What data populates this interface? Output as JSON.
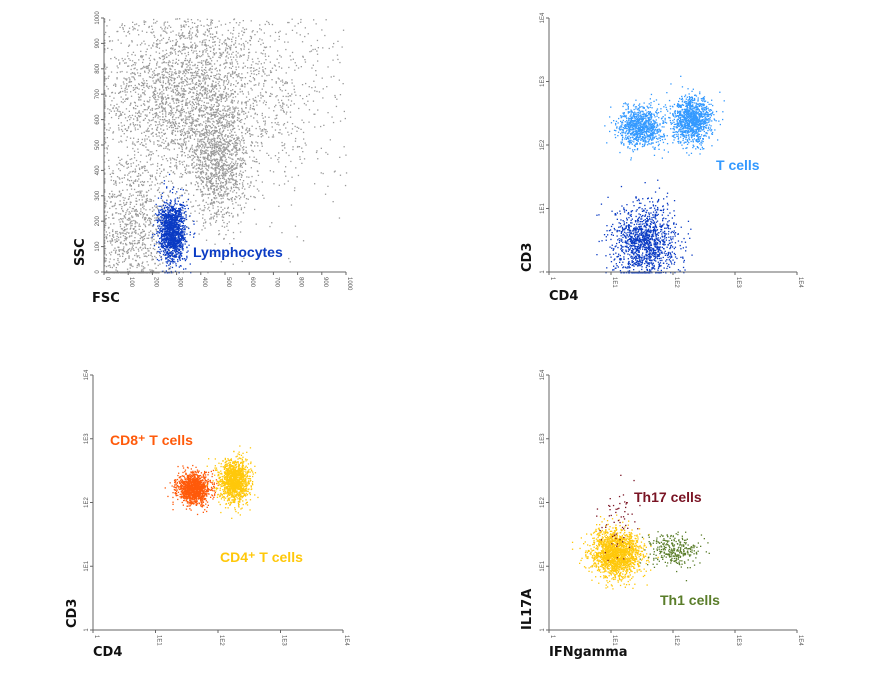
{
  "chart_data": [
    {
      "type": "scatter",
      "xlabel": "FSC",
      "ylabel": "SSC",
      "xscale": "linear",
      "yscale": "linear",
      "xlim": [
        0,
        1000
      ],
      "ylim": [
        0,
        1000
      ],
      "xticks": [
        "0",
        "100",
        "200",
        "300",
        "400",
        "500",
        "600",
        "700",
        "800",
        "900",
        "1000"
      ],
      "yticks": [
        "0",
        "100",
        "200",
        "300",
        "400",
        "500",
        "600",
        "700",
        "800",
        "900",
        "1000"
      ],
      "grid": false,
      "populations": [
        {
          "color": "#9a9a9a",
          "n": 2500,
          "center": [
            330,
            700
          ],
          "spread": [
            170,
            180
          ]
        },
        {
          "color": "#9a9a9a",
          "n": 1000,
          "center": [
            470,
            420
          ],
          "spread": [
            60,
            110
          ]
        },
        {
          "color": "#9a9a9a",
          "n": 900,
          "center": [
            120,
            150
          ],
          "spread": [
            80,
            150
          ]
        },
        {
          "color": "#9a9a9a",
          "n": 900,
          "center": [
            600,
            700
          ],
          "spread": [
            250,
            230
          ]
        },
        {
          "name": "Lymphocytes",
          "color": "#0a3bc4",
          "n": 1400,
          "center": [
            280,
            160
          ],
          "spread": [
            28,
            60
          ]
        }
      ]
    },
    {
      "type": "scatter",
      "xlabel": "CD4",
      "ylabel": "CD3",
      "xscale": "log",
      "yscale": "log",
      "xlim": [
        1,
        10000
      ],
      "ylim": [
        1,
        10000
      ],
      "xticks": [
        "1",
        "1E1",
        "1E2",
        "1E3",
        "1E4"
      ],
      "yticks": [
        "1",
        "1E1",
        "1E2",
        "1E3",
        "1E4"
      ],
      "grid": false,
      "populations": [
        {
          "color": "#3399ff",
          "n": 900,
          "center": [
            30,
            200
          ],
          "spread": [
            0.18,
            0.16
          ]
        },
        {
          "name": "T cells",
          "color": "#3399ff",
          "n": 1100,
          "center": [
            200,
            250
          ],
          "spread": [
            0.16,
            0.18
          ]
        },
        {
          "color": "#0a3bc4",
          "n": 1300,
          "center": [
            35,
            3
          ],
          "spread": [
            0.25,
            0.3
          ]
        }
      ]
    },
    {
      "type": "scatter",
      "xlabel": "CD4",
      "ylabel": "CD3",
      "xscale": "log",
      "yscale": "log",
      "xlim": [
        1,
        10000
      ],
      "ylim": [
        1,
        10000
      ],
      "xticks": [
        "1",
        "1E1",
        "1E2",
        "1E3",
        "1E4"
      ],
      "yticks": [
        "1",
        "1E1",
        "1E2",
        "1E3",
        "1E4"
      ],
      "grid": false,
      "populations": [
        {
          "name": "CD8⁺ T cells",
          "color": "#ff5a0a",
          "n": 1200,
          "center": [
            40,
            170
          ],
          "spread": [
            0.13,
            0.12
          ]
        },
        {
          "name": "CD4⁺ T cells",
          "color": "#ffc80a",
          "n": 1300,
          "center": [
            180,
            220
          ],
          "spread": [
            0.12,
            0.17
          ]
        }
      ]
    },
    {
      "type": "scatter",
      "xlabel": "IFNgamma",
      "ylabel": "IL17A",
      "xscale": "log",
      "yscale": "log",
      "xlim": [
        1,
        10000
      ],
      "ylim": [
        1,
        10000
      ],
      "xticks": [
        "1",
        "1E1",
        "1E2",
        "1E3",
        "1E4"
      ],
      "yticks": [
        "1",
        "1E1",
        "1E2",
        "1E3",
        "1E4"
      ],
      "grid": false,
      "populations": [
        {
          "color": "#ffc80a",
          "n": 1800,
          "center": [
            12,
            16
          ],
          "spread": [
            0.2,
            0.18
          ]
        },
        {
          "name": "Th1 cells",
          "color": "#5a7d2a",
          "n": 300,
          "center": [
            100,
            18
          ],
          "spread": [
            0.2,
            0.13
          ]
        },
        {
          "name": "Th17 cells",
          "color": "#7a1424",
          "n": 60,
          "center": [
            12,
            55
          ],
          "spread": [
            0.15,
            0.25
          ]
        }
      ]
    }
  ],
  "labels": {
    "lymphocytes": "Lymphocytes",
    "t_cells": "T cells",
    "cd8": "CD8⁺ T cells",
    "cd4": "CD4⁺ T cells",
    "th17": "Th17 cells",
    "th1": "Th1 cells"
  }
}
